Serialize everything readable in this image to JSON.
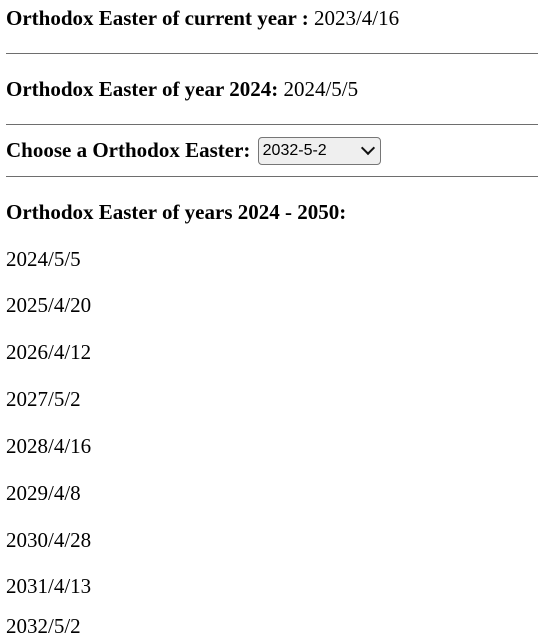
{
  "current": {
    "label": "Orthodox Easter of current year :",
    "value": "2023/4/16"
  },
  "year_2024": {
    "label": "Orthodox Easter of year 2024:",
    "value": "2024/5/5"
  },
  "chooser": {
    "label": "Choose a Orthodox Easter:",
    "selected": "2032-5-2",
    "options": [
      "2032-5-2"
    ]
  },
  "range": {
    "heading": "Orthodox Easter of years 2024 - 2050:",
    "dates": [
      "2024/5/5",
      "2025/4/20",
      "2026/4/12",
      "2027/5/2",
      "2028/4/16",
      "2029/4/8",
      "2030/4/28",
      "2031/4/13",
      "2032/5/2"
    ]
  },
  "colors": {
    "rule": "#6e6e6e",
    "select_bg": "#efefef"
  },
  "icons": {
    "select": "chevron-down-icon"
  }
}
